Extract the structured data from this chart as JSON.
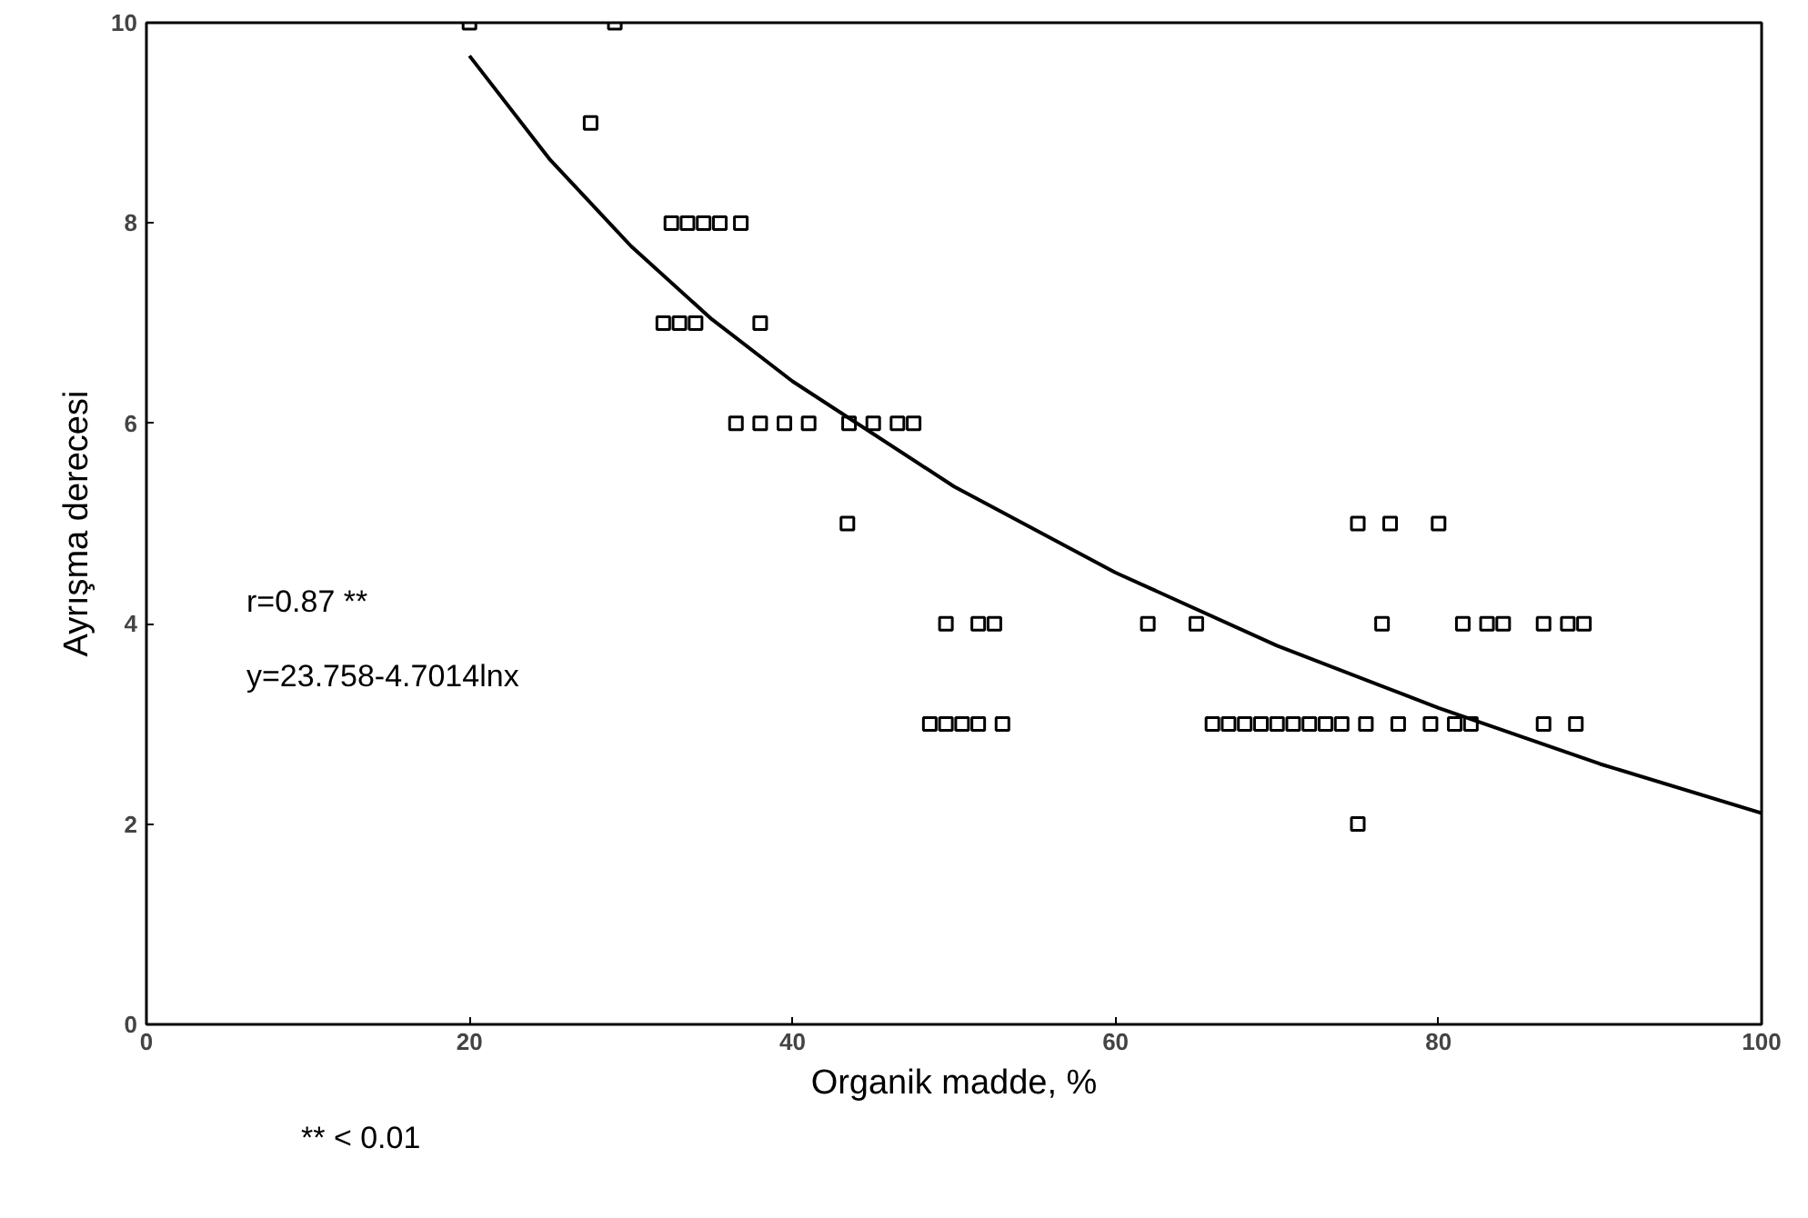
{
  "chart_data": {
    "type": "scatter",
    "xlabel": "Organik madde, %",
    "ylabel": "Ayrışma derecesi",
    "xlim": [
      0,
      100
    ],
    "ylim": [
      0,
      10
    ],
    "xticks": [
      0,
      20,
      40,
      60,
      80,
      100
    ],
    "yticks": [
      0,
      2,
      4,
      6,
      8,
      10
    ],
    "grid": false,
    "series": [
      {
        "marker": "square",
        "color": "#000000",
        "x": [
          20,
          29,
          27.5,
          32.5,
          33.5,
          34.5,
          35.5,
          36.8,
          32,
          33,
          34,
          38,
          36.5,
          38,
          39.5,
          41,
          43.5,
          45,
          46.5,
          47.5,
          43.4,
          49.5,
          51.5,
          52.5,
          48.5,
          49.5,
          50.5,
          51.5,
          53,
          75,
          77,
          80,
          62,
          65,
          76.5,
          81.5,
          83,
          84,
          86.5,
          88,
          89,
          66,
          67,
          68,
          69,
          70,
          71,
          72,
          73,
          74,
          75.5,
          77.5,
          79.5,
          81,
          82,
          86.5,
          88.5,
          75
        ],
        "values": [
          10,
          10,
          9,
          8,
          8,
          8,
          8,
          8,
          7,
          7,
          7,
          7,
          6,
          6,
          6,
          6,
          6,
          6,
          6,
          6,
          5,
          4,
          4,
          4,
          3,
          3,
          3,
          3,
          3,
          5,
          5,
          5,
          4,
          4,
          4,
          4,
          4,
          4,
          4,
          4,
          4,
          3,
          3,
          3,
          3,
          3,
          3,
          3,
          3,
          3,
          3,
          3,
          3,
          3,
          3,
          3,
          3,
          2
        ]
      },
      {
        "type": "line",
        "color": "#000000",
        "line_style": "solid",
        "x": [
          20,
          25,
          30,
          35,
          40,
          50,
          60,
          70,
          80,
          90,
          100
        ],
        "values": [
          9.67,
          8.63,
          7.77,
          7.04,
          6.42,
          5.37,
          4.51,
          3.78,
          3.16,
          2.6,
          2.11
        ]
      }
    ],
    "annotations": [
      "r=0.87 **",
      "y=23.758-4.7014lnx",
      "** < 0.01"
    ]
  }
}
